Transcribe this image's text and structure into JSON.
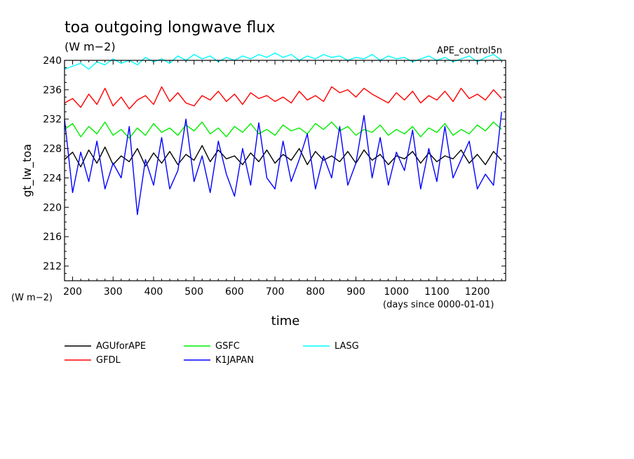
{
  "chart_data": {
    "type": "line",
    "title": "toa outgoing longwave flux",
    "units": "(W m−2)",
    "run_label": "APE_control5n",
    "ylabel": "gt_lw_toa",
    "ylabel_units": "(W m−2)",
    "xlabel": "time",
    "xlabel_units": "(days since 0000-01-01)",
    "xlim": [
      180,
      1270
    ],
    "ylim": [
      210,
      240
    ],
    "x_ticks": [
      200,
      300,
      400,
      500,
      600,
      700,
      800,
      900,
      1000,
      1100,
      1200
    ],
    "y_ticks": [
      212,
      216,
      220,
      224,
      228,
      232,
      236,
      240
    ],
    "grid": false,
    "legend_position": "bottom",
    "series": [
      {
        "name": "AGUforAPE",
        "color": "#000000",
        "x": [
          180,
          200,
          220,
          240,
          260,
          280,
          300,
          320,
          340,
          360,
          380,
          400,
          420,
          440,
          460,
          480,
          500,
          520,
          540,
          560,
          580,
          600,
          620,
          640,
          660,
          680,
          700,
          720,
          740,
          760,
          780,
          800,
          820,
          840,
          860,
          880,
          900,
          920,
          940,
          960,
          980,
          1000,
          1020,
          1040,
          1060,
          1080,
          1100,
          1120,
          1140,
          1160,
          1180,
          1200,
          1220,
          1240,
          1260
        ],
        "values": [
          226.5,
          227.5,
          225.5,
          227.8,
          226.0,
          228.2,
          225.8,
          227.0,
          226.2,
          228.0,
          225.6,
          227.4,
          226.0,
          227.6,
          225.8,
          227.2,
          226.4,
          228.4,
          226.2,
          227.8,
          226.6,
          227.0,
          225.8,
          227.4,
          226.2,
          227.8,
          226.0,
          227.2,
          226.4,
          228.0,
          225.8,
          227.6,
          226.4,
          227.0,
          226.2,
          227.6,
          226.0,
          227.8,
          226.4,
          227.2,
          225.8,
          227.0,
          226.6,
          227.6,
          226.0,
          227.4,
          226.2,
          227.0,
          226.6,
          227.8,
          226.0,
          227.2,
          225.8,
          227.6,
          226.4
        ]
      },
      {
        "name": "GFDL",
        "color": "#ff0000",
        "x": [
          180,
          200,
          220,
          240,
          260,
          280,
          300,
          320,
          340,
          360,
          380,
          400,
          420,
          440,
          460,
          480,
          500,
          520,
          540,
          560,
          580,
          600,
          620,
          640,
          660,
          680,
          700,
          720,
          740,
          760,
          780,
          800,
          820,
          840,
          860,
          880,
          900,
          920,
          940,
          960,
          980,
          1000,
          1020,
          1040,
          1060,
          1080,
          1100,
          1120,
          1140,
          1160,
          1180,
          1200,
          1220,
          1240,
          1260
        ],
        "values": [
          234.2,
          234.8,
          233.6,
          235.4,
          234.0,
          236.2,
          233.8,
          235.0,
          233.4,
          234.6,
          235.2,
          234.0,
          236.4,
          234.4,
          235.6,
          234.2,
          233.8,
          235.2,
          234.6,
          235.8,
          234.4,
          235.4,
          234.0,
          235.6,
          234.8,
          235.2,
          234.4,
          235.0,
          234.2,
          235.8,
          234.6,
          235.2,
          234.4,
          236.4,
          235.6,
          236.0,
          235.0,
          236.2,
          235.4,
          234.8,
          234.2,
          235.6,
          234.6,
          235.8,
          234.2,
          235.2,
          234.6,
          235.8,
          234.4,
          236.2,
          234.8,
          235.4,
          234.6,
          236.0,
          234.8
        ]
      },
      {
        "name": "GSFC",
        "color": "#00ee00",
        "x": [
          180,
          200,
          220,
          240,
          260,
          280,
          300,
          320,
          340,
          360,
          380,
          400,
          420,
          440,
          460,
          480,
          500,
          520,
          540,
          560,
          580,
          600,
          620,
          640,
          660,
          680,
          700,
          720,
          740,
          760,
          780,
          800,
          820,
          840,
          860,
          880,
          900,
          920,
          940,
          960,
          980,
          1000,
          1020,
          1040,
          1060,
          1080,
          1100,
          1120,
          1140,
          1160,
          1180,
          1200,
          1220,
          1240,
          1260
        ],
        "values": [
          230.6,
          231.4,
          229.6,
          231.0,
          230.0,
          231.6,
          229.8,
          230.6,
          229.4,
          230.8,
          229.8,
          231.4,
          230.2,
          230.8,
          229.8,
          231.2,
          230.4,
          231.6,
          230.0,
          230.8,
          229.6,
          231.0,
          230.2,
          231.4,
          230.0,
          230.6,
          229.8,
          231.2,
          230.4,
          230.8,
          230.0,
          231.4,
          230.6,
          231.6,
          230.4,
          231.0,
          229.8,
          230.6,
          230.2,
          231.2,
          229.8,
          230.6,
          230.0,
          231.0,
          229.6,
          230.8,
          230.2,
          231.4,
          229.8,
          230.6,
          230.0,
          231.2,
          230.4,
          231.6,
          230.6
        ]
      },
      {
        "name": "K1JAPAN",
        "color": "#0000ff",
        "x": [
          180,
          200,
          220,
          240,
          260,
          280,
          300,
          320,
          340,
          360,
          380,
          400,
          420,
          440,
          460,
          480,
          500,
          520,
          540,
          560,
          580,
          600,
          620,
          640,
          660,
          680,
          700,
          720,
          740,
          760,
          780,
          800,
          820,
          840,
          860,
          880,
          900,
          920,
          940,
          960,
          980,
          1000,
          1020,
          1040,
          1060,
          1080,
          1100,
          1120,
          1140,
          1160,
          1180,
          1200,
          1220,
          1240,
          1260
        ],
        "values": [
          232.0,
          222.0,
          227.5,
          223.5,
          229.0,
          222.5,
          226.0,
          224.0,
          231.0,
          219.0,
          226.5,
          223.0,
          229.5,
          222.5,
          225.0,
          232.0,
          223.5,
          227.0,
          222.0,
          229.0,
          224.5,
          221.5,
          228.0,
          223.0,
          231.5,
          224.0,
          222.5,
          229.0,
          223.5,
          226.5,
          230.0,
          222.5,
          227.0,
          224.0,
          231.0,
          223.0,
          226.0,
          232.5,
          224.0,
          229.5,
          223.0,
          227.5,
          225.0,
          230.5,
          222.5,
          228.0,
          223.5,
          231.0,
          224.0,
          226.5,
          229.0,
          222.5,
          224.5,
          223.0,
          233.0
        ]
      },
      {
        "name": "LASG",
        "color": "#00ffff",
        "x": [
          180,
          200,
          220,
          240,
          260,
          280,
          300,
          320,
          340,
          360,
          380,
          400,
          420,
          440,
          460,
          480,
          500,
          520,
          540,
          560,
          580,
          600,
          620,
          640,
          660,
          680,
          700,
          720,
          740,
          760,
          780,
          800,
          820,
          840,
          860,
          880,
          900,
          920,
          940,
          960,
          980,
          1000,
          1020,
          1040,
          1060,
          1080,
          1100,
          1120,
          1140,
          1160,
          1180,
          1200,
          1220,
          1240,
          1260
        ],
        "values": [
          238.8,
          239.2,
          239.6,
          238.8,
          239.8,
          239.4,
          240.2,
          239.6,
          240.0,
          239.4,
          240.4,
          239.8,
          240.2,
          239.6,
          240.6,
          240.0,
          240.8,
          240.2,
          240.6,
          239.8,
          240.4,
          240.0,
          240.6,
          240.2,
          240.8,
          240.4,
          241.0,
          240.4,
          240.8,
          240.0,
          240.6,
          240.2,
          240.8,
          240.4,
          240.6,
          240.0,
          240.4,
          240.2,
          240.8,
          240.0,
          240.6,
          240.2,
          240.4,
          239.8,
          240.2,
          240.6,
          240.0,
          240.4,
          239.8,
          240.2,
          240.6,
          239.8,
          240.4,
          240.8,
          240.0
        ]
      }
    ]
  }
}
